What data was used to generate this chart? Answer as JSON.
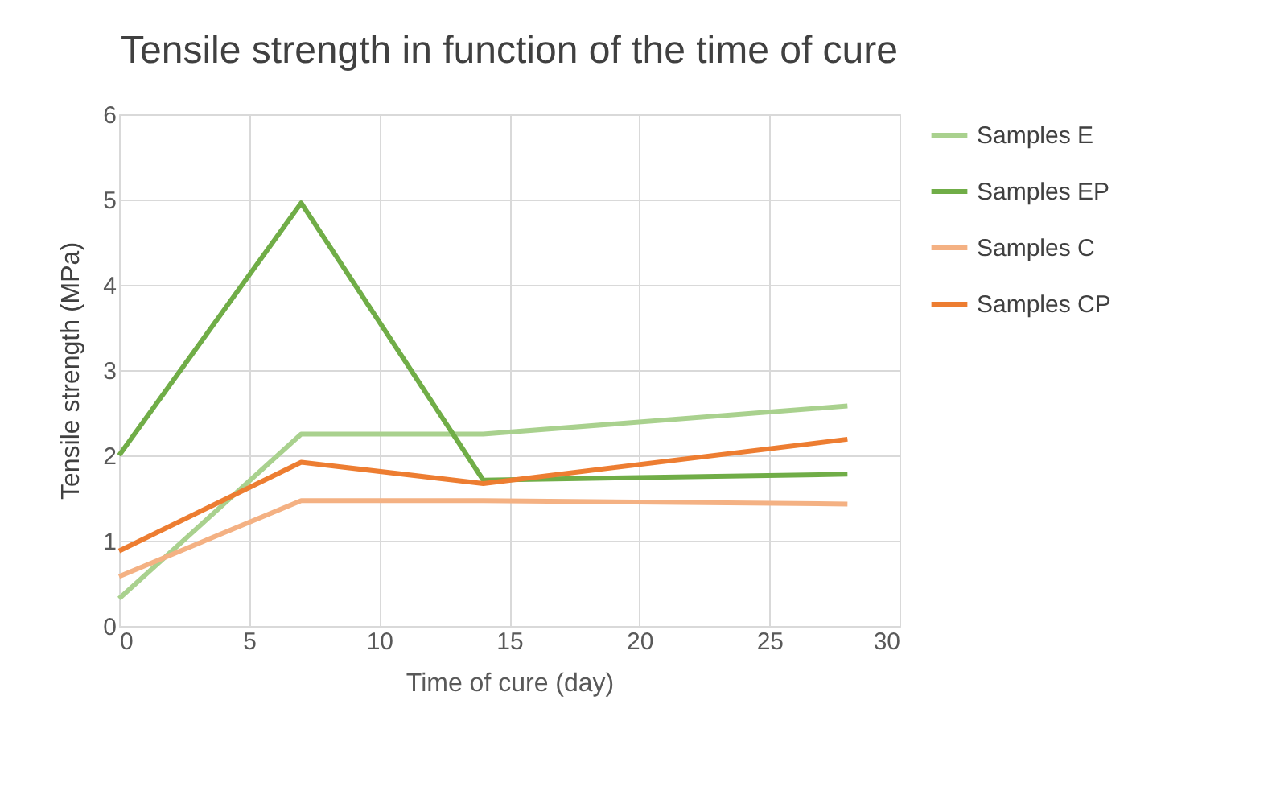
{
  "chart_data": {
    "type": "line",
    "title": "Tensile strength in function of the time of cure",
    "xlabel": "Time of cure (day)",
    "ylabel": "Tensile strength (MPa)",
    "x": [
      0,
      7,
      14,
      28
    ],
    "series": [
      {
        "name": "Samples E",
        "color": "#a9d18e",
        "values": [
          0.32,
          2.25,
          2.25,
          2.58
        ]
      },
      {
        "name": "Samples EP",
        "color": "#70ad47",
        "values": [
          2.0,
          4.96,
          1.71,
          1.78
        ]
      },
      {
        "name": "Samples C",
        "color": "#f4b183",
        "values": [
          0.58,
          1.47,
          1.47,
          1.43
        ]
      },
      {
        "name": "Samples CP",
        "color": "#ed7d31",
        "values": [
          0.88,
          1.92,
          1.67,
          2.19
        ]
      }
    ],
    "xlim": [
      0,
      30
    ],
    "xticks": [
      0,
      5,
      10,
      15,
      20,
      25,
      30
    ],
    "ylim": [
      0,
      6
    ],
    "yticks": [
      0,
      1,
      2,
      3,
      4,
      5,
      6
    ],
    "grid": true,
    "legend": "right",
    "marker": "none",
    "line_style": "solid"
  }
}
